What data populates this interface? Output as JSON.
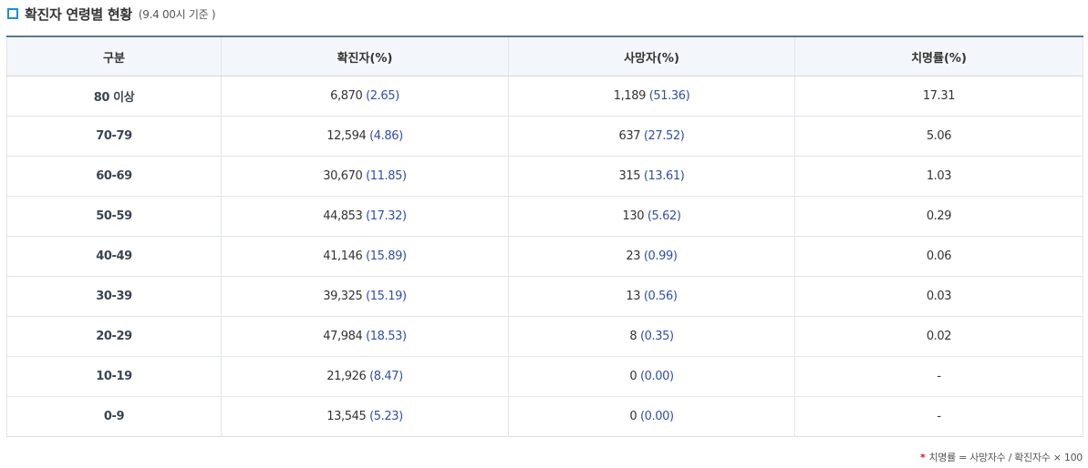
{
  "header": {
    "title": "확진자 연령별 현황",
    "subtitle": "(9.4 00시 기준 )"
  },
  "table": {
    "columns": [
      "구분",
      "확진자(%)",
      "사망자(%)",
      "치명률(%)"
    ],
    "rows": [
      {
        "group": "80 이상",
        "confirmed": "6,870",
        "confirmed_pct": "(2.65)",
        "deaths": "1,189",
        "deaths_pct": "(51.36)",
        "fatality": "17.31"
      },
      {
        "group": "70-79",
        "confirmed": "12,594",
        "confirmed_pct": "(4.86)",
        "deaths": "637",
        "deaths_pct": "(27.52)",
        "fatality": "5.06"
      },
      {
        "group": "60-69",
        "confirmed": "30,670",
        "confirmed_pct": "(11.85)",
        "deaths": "315",
        "deaths_pct": "(13.61)",
        "fatality": "1.03"
      },
      {
        "group": "50-59",
        "confirmed": "44,853",
        "confirmed_pct": "(17.32)",
        "deaths": "130",
        "deaths_pct": "(5.62)",
        "fatality": "0.29"
      },
      {
        "group": "40-49",
        "confirmed": "41,146",
        "confirmed_pct": "(15.89)",
        "deaths": "23",
        "deaths_pct": "(0.99)",
        "fatality": "0.06"
      },
      {
        "group": "30-39",
        "confirmed": "39,325",
        "confirmed_pct": "(15.19)",
        "deaths": "13",
        "deaths_pct": "(0.56)",
        "fatality": "0.03"
      },
      {
        "group": "20-29",
        "confirmed": "47,984",
        "confirmed_pct": "(18.53)",
        "deaths": "8",
        "deaths_pct": "(0.35)",
        "fatality": "0.02"
      },
      {
        "group": "10-19",
        "confirmed": "21,926",
        "confirmed_pct": "(8.47)",
        "deaths": "0",
        "deaths_pct": "(0.00)",
        "fatality": "-"
      },
      {
        "group": "0-9",
        "confirmed": "13,545",
        "confirmed_pct": "(5.23)",
        "deaths": "0",
        "deaths_pct": "(0.00)",
        "fatality": "-"
      }
    ]
  },
  "footnote": {
    "marker": "*",
    "text": "치명률 = 사망자수 / 확진자수 × 100"
  },
  "colors": {
    "accent": "#1a8fd6",
    "value_blue": "#2f4fa8",
    "header_bg": "#f3f7fb",
    "footnote_marker": "#d7141e"
  }
}
